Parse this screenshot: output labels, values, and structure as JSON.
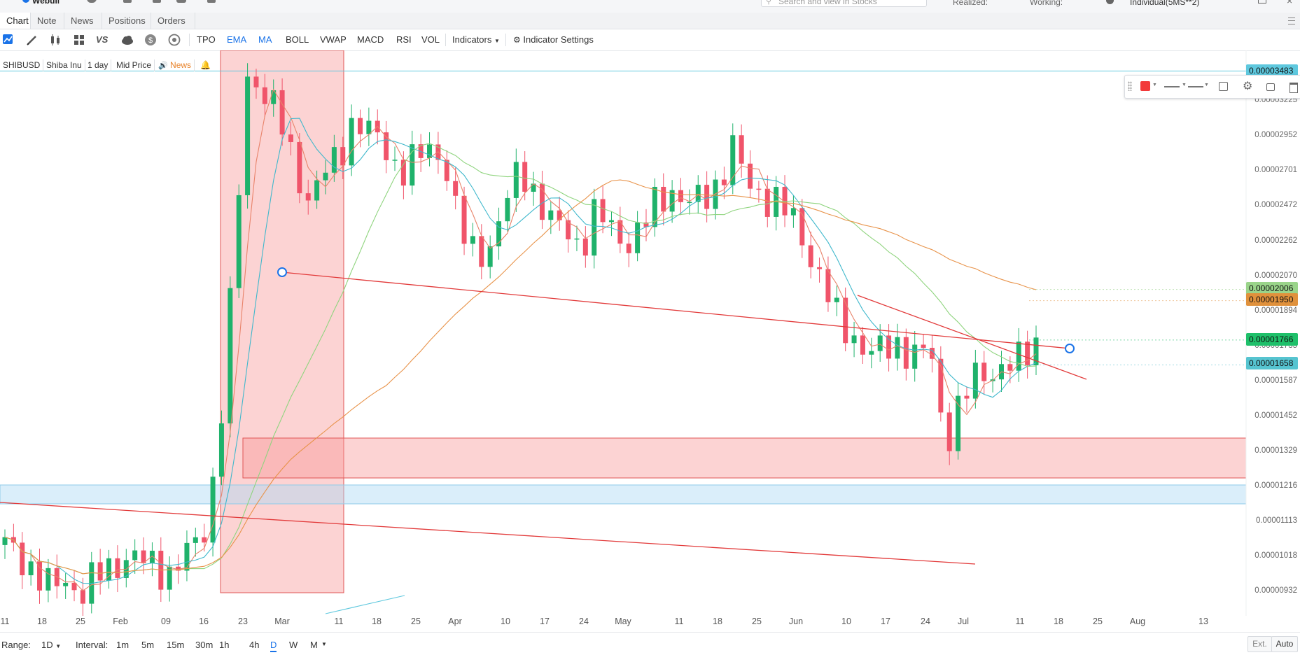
{
  "top": {
    "logo_text": "Webull",
    "search_placeholder": "Search and view in Stocks",
    "realized_label": "Realized:",
    "working_label": "Working:",
    "account_label": "Individual(5MS**2)"
  },
  "tabs": [
    {
      "label": "Chart",
      "active": true
    },
    {
      "label": "Note",
      "active": false
    },
    {
      "label": "News",
      "active": false
    },
    {
      "label": "Positions",
      "active": false
    },
    {
      "label": "Orders",
      "active": false
    }
  ],
  "toolbar": {
    "icons": [
      "line-chart-icon",
      "pencil-icon",
      "candlestick-icon",
      "layout-grid-icon",
      "vs-icon",
      "cloud-icon",
      "dollar-icon",
      "clock-cycle-icon"
    ],
    "vs_label": "VS",
    "indicators": [
      {
        "label": "TPO",
        "active": false
      },
      {
        "label": "EMA",
        "active": true
      },
      {
        "label": "MA",
        "active": true
      },
      {
        "label": "BOLL",
        "active": false
      },
      {
        "label": "VWAP",
        "active": false
      },
      {
        "label": "MACD",
        "active": false
      },
      {
        "label": "RSI",
        "active": false
      },
      {
        "label": "VOL",
        "active": false
      }
    ],
    "indicators_menu": "Indicators",
    "indicator_settings": "Indicator Settings"
  },
  "legend": {
    "symbol": "SHIBUSD",
    "name": "Shiba Inu",
    "interval": "1 day",
    "price_type": "Mid Price",
    "news": "News"
  },
  "price_axis": {
    "ticks": [
      "0.00003225",
      "0.00002952",
      "0.00002701",
      "0.00002472",
      "0.00002262",
      "0.00002070",
      "0.00001894",
      "0.00001735",
      "0.00001587",
      "0.00001452",
      "0.00001329",
      "0.00001216",
      "0.00001113",
      "0.00001018",
      "0.00000932"
    ],
    "badges": [
      {
        "label": "0.00003483",
        "color": "#5ec8de"
      },
      {
        "label": "0.00002006",
        "color": "#9ad48a"
      },
      {
        "label": "0.00001950",
        "color": "#e0913c"
      },
      {
        "label": "0.00001766",
        "color": "#1fc06a"
      },
      {
        "label": "0.00001658",
        "color": "#56c4d0"
      }
    ]
  },
  "time_axis": [
    "11",
    "18",
    "25",
    "Feb",
    "09",
    "16",
    "23",
    "Mar",
    "11",
    "18",
    "25",
    "Apr",
    "10",
    "17",
    "24",
    "May",
    "11",
    "18",
    "25",
    "Jun",
    "10",
    "17",
    "24",
    "Jul",
    "11",
    "18",
    "25",
    "Aug",
    "13"
  ],
  "chart_data": {
    "type": "candlestick",
    "symbol": "SHIBUSD",
    "interval": "1 day",
    "y_scale": "log",
    "ylim": [
      9e-06,
      3.65e-05
    ],
    "last_price": 1.766e-05,
    "ma_values": [
      2.006e-05,
      1.95e-05,
      1.658e-05
    ],
    "close_path": [
      1.05e-05,
      1.02e-05,
      9.8e-06,
      9.4e-06,
      9.6e-06,
      9.3e-06,
      9.7e-06,
      9.9e-06,
      1.02e-05,
      1.01e-05,
      9.9e-06,
      9.8e-06,
      1.03e-05,
      1.06e-05,
      1.31e-05,
      2.05e-05,
      3.42e-05,
      3.35e-05,
      3.12e-05,
      2.76e-05,
      2.53e-05,
      2.68e-05,
      2.79e-05,
      3.1e-05,
      2.99e-05,
      2.87e-05,
      2.71e-05,
      2.78e-05,
      2.85e-05,
      2.8e-05,
      2.33e-05,
      2.18e-05,
      2.25e-05,
      2.49e-05,
      2.72e-05,
      2.56e-05,
      2.38e-05,
      2.32e-05,
      2.24e-05,
      2.45e-05,
      2.33e-05,
      2.26e-05,
      2.34e-05,
      2.5e-05,
      2.58e-05,
      2.49e-05,
      2.51e-05,
      2.62e-05,
      2.88e-05,
      2.6e-05,
      2.55e-05,
      2.5e-05,
      2.38e-05,
      2.21e-05,
      2.03e-05,
      1.84e-05,
      1.78e-05,
      1.71e-05,
      1.72e-05,
      1.75e-05,
      1.7e-05,
      1.73e-05,
      1.36e-05,
      1.51e-05,
      1.6e-05,
      1.63e-05,
      1.66e-05,
      1.67e-05,
      1.76e-05
    ]
  },
  "drawing_toolbar": {
    "icons": [
      "drag-handle-icon",
      "color-swatch-icon",
      "line-style-icon",
      "line-width-icon",
      "clone-icon",
      "settings-icon",
      "unlock-icon",
      "trash-icon"
    ],
    "color": "#f23a3a"
  },
  "bottom": {
    "range_label": "Range:",
    "range_value": "1D",
    "interval_label": "Interval:",
    "intervals": [
      {
        "label": "1m",
        "active": false
      },
      {
        "label": "5m",
        "active": false
      },
      {
        "label": "15m",
        "active": false
      },
      {
        "label": "30m",
        "active": false
      },
      {
        "label": "1h",
        "active": false
      },
      {
        "label": "4h",
        "active": false
      },
      {
        "label": "D",
        "active": true
      },
      {
        "label": "W",
        "active": false
      },
      {
        "label": "M",
        "active": false
      }
    ],
    "ext_label": "Ext.",
    "auto_label": "Auto"
  }
}
